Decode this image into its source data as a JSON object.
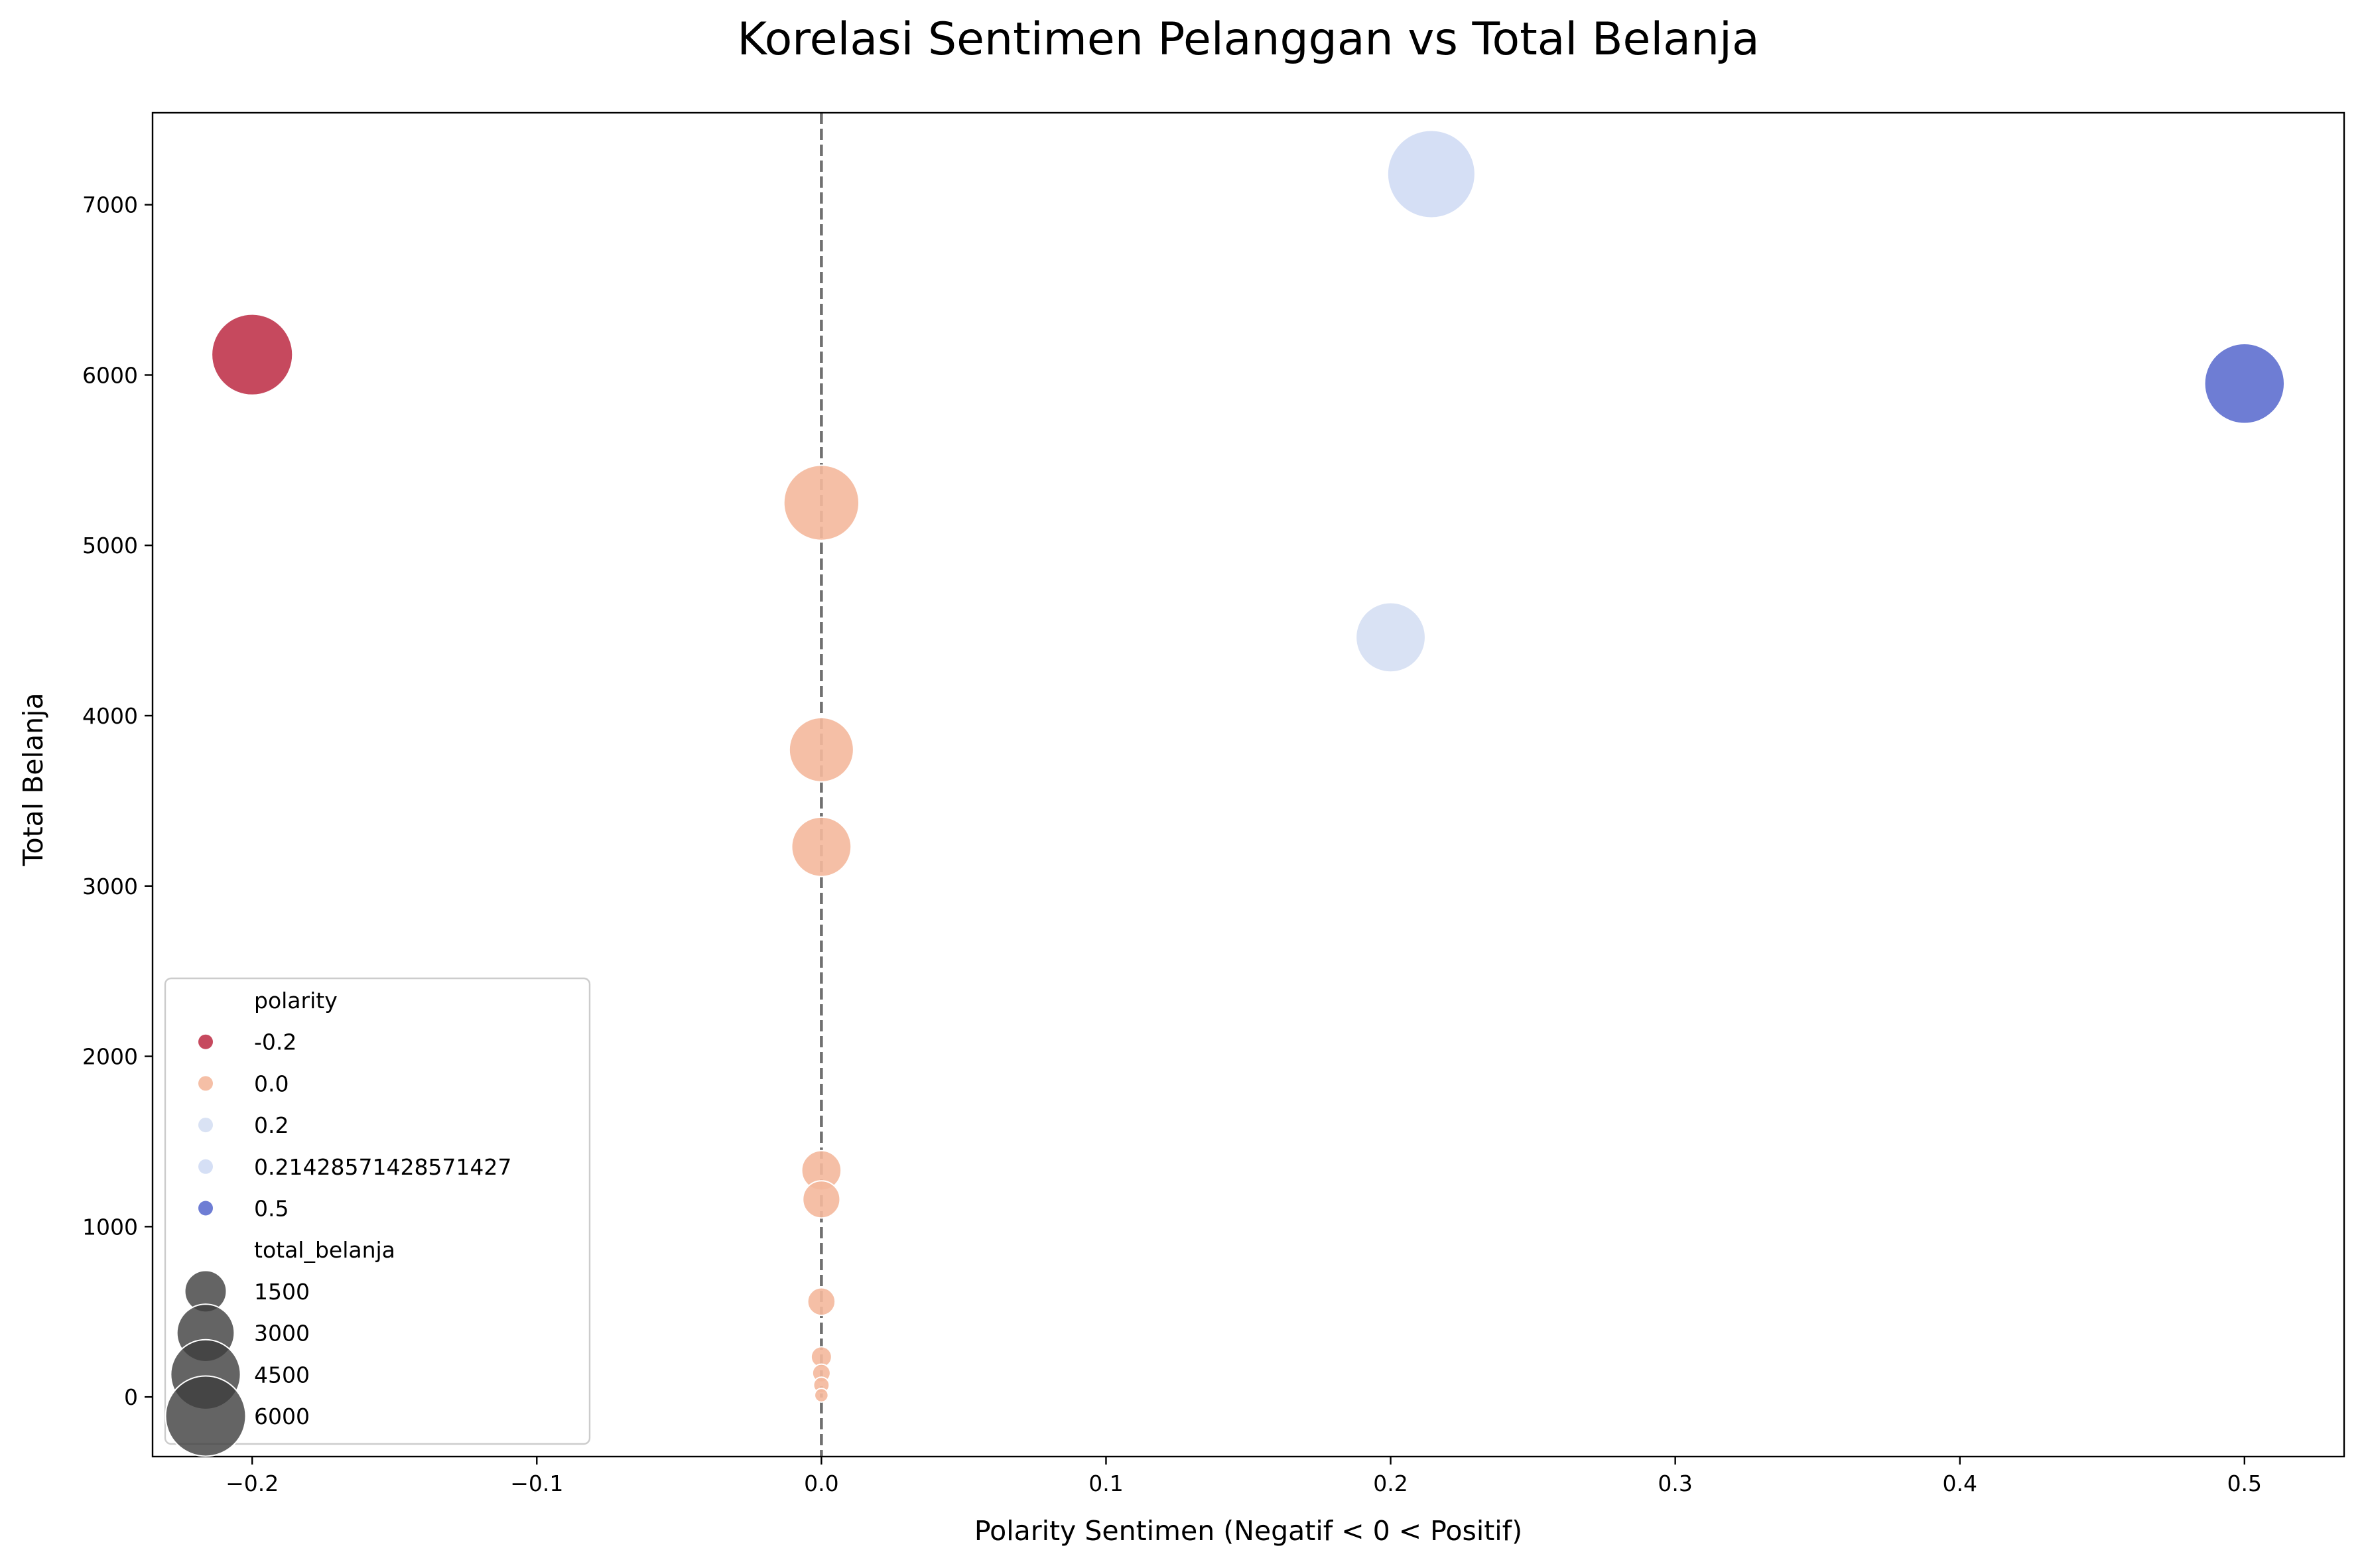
{
  "chart_data": {
    "type": "scatter",
    "title": "Korelasi Sentimen Pelanggan vs Total Belanja",
    "xlabel": "Polarity Sentimen (Negatif < 0 < Positif)",
    "ylabel": "Total Belanja",
    "xlim": [
      -0.235,
      0.535
    ],
    "ylim": [
      -350,
      7540
    ],
    "xticks": [
      -0.2,
      -0.1,
      0.0,
      0.1,
      0.2,
      0.3,
      0.4,
      0.5
    ],
    "xtick_labels": [
      "−0.2",
      "−0.1",
      "0.0",
      "0.1",
      "0.2",
      "0.3",
      "0.4",
      "0.5"
    ],
    "yticks": [
      0,
      1000,
      2000,
      3000,
      4000,
      5000,
      6000,
      7000
    ],
    "ytick_labels": [
      "0",
      "1000",
      "2000",
      "3000",
      "4000",
      "5000",
      "6000",
      "7000"
    ],
    "reference_line": {
      "x": 0.0,
      "style": "dashed",
      "color": "#707070"
    },
    "size_range": {
      "min_value": 0,
      "max_value": 7180
    },
    "points": [
      {
        "x": -0.2,
        "y": 6120,
        "polarity": "-0.2"
      },
      {
        "x": 0.0,
        "y": 5250,
        "polarity": "0.0"
      },
      {
        "x": 0.0,
        "y": 3800,
        "polarity": "0.0"
      },
      {
        "x": 0.0,
        "y": 3230,
        "polarity": "0.0"
      },
      {
        "x": 0.0,
        "y": 1330,
        "polarity": "0.0"
      },
      {
        "x": 0.0,
        "y": 1160,
        "polarity": "0.0"
      },
      {
        "x": 0.0,
        "y": 560,
        "polarity": "0.0"
      },
      {
        "x": 0.0,
        "y": 235,
        "polarity": "0.0"
      },
      {
        "x": 0.0,
        "y": 140,
        "polarity": "0.0"
      },
      {
        "x": 0.0,
        "y": 70,
        "polarity": "0.0"
      },
      {
        "x": 0.0,
        "y": 10,
        "polarity": "0.0"
      },
      {
        "x": 0.2,
        "y": 4460,
        "polarity": "0.2"
      },
      {
        "x": 0.21428571428571427,
        "y": 7180,
        "polarity": "0.21428571428571427"
      },
      {
        "x": 0.5,
        "y": 5950,
        "polarity": "0.5"
      }
    ],
    "legend": {
      "position": "lower-left",
      "hue_title": "polarity",
      "hue_entries": [
        {
          "label": "-0.2",
          "color": "#c0354d"
        },
        {
          "label": "0.0",
          "color": "#f4b89c"
        },
        {
          "label": "0.2",
          "color": "#d5dff3"
        },
        {
          "label": "0.21428571428571427",
          "color": "#d0dcf4"
        },
        {
          "label": "0.5",
          "color": "#5e6fcf"
        }
      ],
      "size_title": "total_belanja",
      "size_entries": [
        {
          "label": "1500",
          "value": 1500
        },
        {
          "label": "3000",
          "value": 3000
        },
        {
          "label": "4500",
          "value": 4500
        },
        {
          "label": "6000",
          "value": 6000
        }
      ],
      "size_marker_color": "#3d3d3d"
    }
  }
}
